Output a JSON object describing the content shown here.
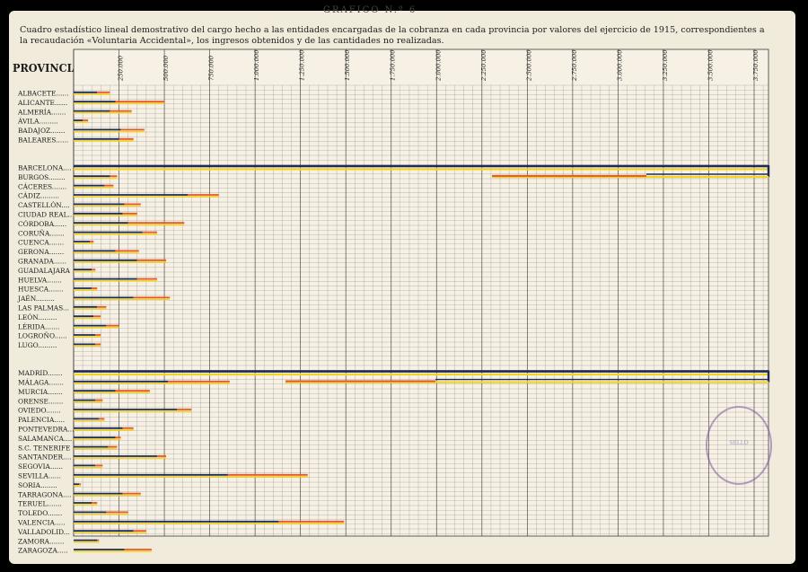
{
  "header": {
    "title": "GRAFICO N.º 6",
    "caption": "Cuadro estadístico lineal demostrativo del cargo hecho a las entidades encargadas de la cobranza en cada provincia por valores del ejercicio de 1915, correspondientes a la recaudación «Voluntaria Accidental», los ingresos obtenidos y de las cantidades no realizadas.",
    "provinces_heading": "PROVINCIAS"
  },
  "colors": {
    "cargo": "#f1d423",
    "ingresos": "#1e2a5a",
    "no_realizadas": "#e8552b",
    "grid": "#3a3a3a",
    "paper": "#f1ebdc"
  },
  "chart_data": {
    "type": "bar",
    "orientation": "horizontal",
    "x_tick_labels": [
      "250.000",
      "500.000",
      "750.000",
      "1.000.000",
      "1.250.000",
      "1.500.000",
      "1.750.000",
      "2.000.000",
      "2.250.000",
      "2.500.000",
      "2.750.000",
      "3.000.000",
      "3.250.000",
      "3.500.000",
      "3.750.000"
    ],
    "x_range": [
      0,
      3750000
    ],
    "grid": true,
    "series_names": [
      "cargo",
      "ingresos",
      "no_realizadas"
    ],
    "rows": [
      {
        "label": "ALBACETE......",
        "cargo": 200000,
        "ingresos": 130000,
        "no_realizadas": 70000
      },
      {
        "label": "ALICANTE......",
        "cargo": 500000,
        "ingresos": 230000,
        "no_realizadas": 270000
      },
      {
        "label": "ALMERÍA.......",
        "cargo": 320000,
        "ingresos": 200000,
        "no_realizadas": 120000
      },
      {
        "label": "ÁVILA.........",
        "cargo": 80000,
        "ingresos": 50000,
        "no_realizadas": 30000
      },
      {
        "label": "BADAJOZ.......",
        "cargo": 390000,
        "ingresos": 260000,
        "no_realizadas": 130000
      },
      {
        "label": "BALEARES......",
        "cargo": 330000,
        "ingresos": 250000,
        "no_realizadas": 80000
      },
      {
        "label": "BARCELONA....",
        "cargo": 3780000,
        "ingresos": 3060000,
        "no_realizadas": 840000,
        "broken": true
      },
      {
        "label": "BURGOS........",
        "cargo": 240000,
        "ingresos": 200000,
        "no_realizadas": 40000
      },
      {
        "label": "CÁCERES.......",
        "cargo": 220000,
        "ingresos": 170000,
        "no_realizadas": 50000
      },
      {
        "label": "CÁDIZ.........",
        "cargo": 800000,
        "ingresos": 630000,
        "no_realizadas": 170000
      },
      {
        "label": "CASTELLÓN....",
        "cargo": 370000,
        "ingresos": 280000,
        "no_realizadas": 90000
      },
      {
        "label": "CIUDAD REAL..",
        "cargo": 350000,
        "ingresos": 270000,
        "no_realizadas": 80000
      },
      {
        "label": "CÓRDOBA......",
        "cargo": 610000,
        "ingresos": 300000,
        "no_realizadas": 310000
      },
      {
        "label": "CORUÑA.......",
        "cargo": 460000,
        "ingresos": 380000,
        "no_realizadas": 80000
      },
      {
        "label": "CUENCA.......",
        "cargo": 110000,
        "ingresos": 90000,
        "no_realizadas": 20000
      },
      {
        "label": "GERONA.......",
        "cargo": 360000,
        "ingresos": 230000,
        "no_realizadas": 130000
      },
      {
        "label": "GRANADA......",
        "cargo": 510000,
        "ingresos": 350000,
        "no_realizadas": 160000
      },
      {
        "label": "GUADALAJARA",
        "cargo": 120000,
        "ingresos": 100000,
        "no_realizadas": 20000
      },
      {
        "label": "HUELVA.......",
        "cargo": 460000,
        "ingresos": 350000,
        "no_realizadas": 110000
      },
      {
        "label": "HUESCA.......",
        "cargo": 130000,
        "ingresos": 100000,
        "no_realizadas": 30000
      },
      {
        "label": "JAÉN.........",
        "cargo": 530000,
        "ingresos": 330000,
        "no_realizadas": 200000
      },
      {
        "label": "LAS PALMAS...",
        "cargo": 180000,
        "ingresos": 130000,
        "no_realizadas": 50000
      },
      {
        "label": "LEÓN.........",
        "cargo": 150000,
        "ingresos": 110000,
        "no_realizadas": 40000
      },
      {
        "label": "LÉRIDA.......",
        "cargo": 250000,
        "ingresos": 180000,
        "no_realizadas": 70000
      },
      {
        "label": "LOGROÑO......",
        "cargo": 150000,
        "ingresos": 120000,
        "no_realizadas": 30000
      },
      {
        "label": "LUGO.........",
        "cargo": 150000,
        "ingresos": 120000,
        "no_realizadas": 30000
      },
      {
        "label": "MADRID.......",
        "cargo": 3800000,
        "ingresos": 1970000,
        "no_realizadas": 830000,
        "broken": true
      },
      {
        "label": "MÁLAGA.......",
        "cargo": 860000,
        "ingresos": 520000,
        "no_realizadas": 340000
      },
      {
        "label": "MURCIA.......",
        "cargo": 420000,
        "ingresos": 230000,
        "no_realizadas": 190000
      },
      {
        "label": "ORENSE.......",
        "cargo": 160000,
        "ingresos": 120000,
        "no_realizadas": 40000
      },
      {
        "label": "OVIEDO.......",
        "cargo": 650000,
        "ingresos": 570000,
        "no_realizadas": 80000
      },
      {
        "label": "PALENCIA.....",
        "cargo": 170000,
        "ingresos": 140000,
        "no_realizadas": 30000
      },
      {
        "label": "PONTEVEDRA...",
        "cargo": 330000,
        "ingresos": 270000,
        "no_realizadas": 60000
      },
      {
        "label": "SALAMANCA....",
        "cargo": 260000,
        "ingresos": 230000,
        "no_realizadas": 30000
      },
      {
        "label": "S.C. TENERIFE",
        "cargo": 240000,
        "ingresos": 190000,
        "no_realizadas": 50000
      },
      {
        "label": "SANTANDER....",
        "cargo": 510000,
        "ingresos": 460000,
        "no_realizadas": 50000
      },
      {
        "label": "SEGOVIA......",
        "cargo": 160000,
        "ingresos": 120000,
        "no_realizadas": 40000
      },
      {
        "label": "SEVILLA......",
        "cargo": 1290000,
        "ingresos": 850000,
        "no_realizadas": 440000
      },
      {
        "label": "SORIA........",
        "cargo": 40000,
        "ingresos": 30000,
        "no_realizadas": 10000
      },
      {
        "label": "TARRAGONA....",
        "cargo": 370000,
        "ingresos": 270000,
        "no_realizadas": 100000
      },
      {
        "label": "TERUEL.......",
        "cargo": 130000,
        "ingresos": 100000,
        "no_realizadas": 30000
      },
      {
        "label": "TOLEDO.......",
        "cargo": 300000,
        "ingresos": 180000,
        "no_realizadas": 120000
      },
      {
        "label": "VALENCIA.....",
        "cargo": 1490000,
        "ingresos": 1130000,
        "no_realizadas": 360000
      },
      {
        "label": "VALLADOLID...",
        "cargo": 400000,
        "ingresos": 330000,
        "no_realizadas": 70000
      },
      {
        "label": "ZAMORA.......",
        "cargo": 140000,
        "ingresos": 130000,
        "no_realizadas": 10000
      },
      {
        "label": "ZARAGOZA.....",
        "cargo": 430000,
        "ingresos": 280000,
        "no_realizadas": 150000
      }
    ]
  }
}
